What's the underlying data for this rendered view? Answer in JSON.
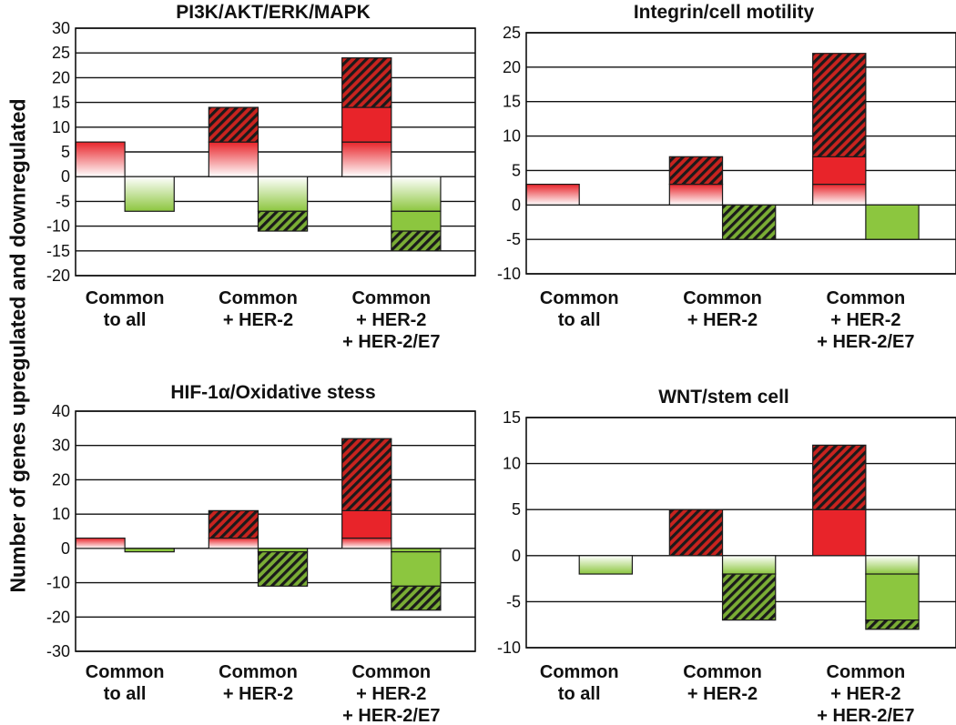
{
  "shared_ylabel": "Number of genes upregulated and downregulated",
  "colors": {
    "up_dark": "#e8242a",
    "up_light": "#ffffff",
    "down_dark": "#8cc63f",
    "down_light": "#ffffff",
    "hatch_up_bg": "#c8231f",
    "hatch_down_bg": "#7aad35",
    "hatch_line": "#1a1a1a"
  },
  "chart_data": [
    {
      "type": "bar",
      "title": "PI3K/AKT/ERK/MAPK",
      "categories": [
        [
          "Common",
          "to all"
        ],
        [
          "Common",
          "+ HER-2"
        ],
        [
          "Common",
          "+ HER-2",
          "+ HER-2/E7"
        ]
      ],
      "ylim": [
        -20,
        30
      ],
      "yticks": [
        -20,
        -15,
        -10,
        -5,
        0,
        5,
        10,
        15,
        20,
        25,
        30
      ],
      "grid": true,
      "up": [
        [
          {
            "from": 0,
            "to": 7,
            "style": "gradient"
          }
        ],
        [
          {
            "from": 0,
            "to": 7,
            "style": "gradient"
          },
          {
            "from": 7,
            "to": 14,
            "style": "hatch"
          }
        ],
        [
          {
            "from": 0,
            "to": 7,
            "style": "gradient"
          },
          {
            "from": 7,
            "to": 14,
            "style": "solid"
          },
          {
            "from": 14,
            "to": 24,
            "style": "hatch"
          }
        ]
      ],
      "down": [
        [
          {
            "from": 0,
            "to": -7,
            "style": "gradient"
          }
        ],
        [
          {
            "from": 0,
            "to": -7,
            "style": "gradient"
          },
          {
            "from": -7,
            "to": -11,
            "style": "hatch"
          }
        ],
        [
          {
            "from": 0,
            "to": -7,
            "style": "gradient"
          },
          {
            "from": -7,
            "to": -11,
            "style": "solid"
          },
          {
            "from": -11,
            "to": -15,
            "style": "hatch"
          }
        ]
      ]
    },
    {
      "type": "bar",
      "title": "Integrin/cell motility",
      "categories": [
        [
          "Common",
          "to all"
        ],
        [
          "Common",
          "+ HER-2"
        ],
        [
          "Common",
          "+ HER-2",
          "+ HER-2/E7"
        ]
      ],
      "ylim": [
        -10,
        25
      ],
      "yticks": [
        -10,
        -5,
        0,
        5,
        10,
        15,
        20,
        25
      ],
      "grid": true,
      "up": [
        [
          {
            "from": 0,
            "to": 3,
            "style": "gradient"
          }
        ],
        [
          {
            "from": 0,
            "to": 3,
            "style": "gradient"
          },
          {
            "from": 3,
            "to": 7,
            "style": "hatch"
          }
        ],
        [
          {
            "from": 0,
            "to": 3,
            "style": "gradient"
          },
          {
            "from": 3,
            "to": 7,
            "style": "solid"
          },
          {
            "from": 7,
            "to": 22,
            "style": "hatch"
          }
        ]
      ],
      "down": [
        [],
        [
          {
            "from": 0,
            "to": -5,
            "style": "hatch"
          }
        ],
        [
          {
            "from": 0,
            "to": -5,
            "style": "solid"
          }
        ]
      ]
    },
    {
      "type": "bar",
      "title": "HIF-1α/Oxidative stess",
      "categories": [
        [
          "Common",
          "to all"
        ],
        [
          "Common",
          "+ HER-2"
        ],
        [
          "Common",
          "+ HER-2",
          "+ HER-2/E7"
        ]
      ],
      "ylim": [
        -30,
        40
      ],
      "yticks": [
        -30,
        -20,
        -10,
        0,
        10,
        20,
        30,
        40
      ],
      "grid": true,
      "up": [
        [
          {
            "from": 0,
            "to": 3,
            "style": "gradient"
          }
        ],
        [
          {
            "from": 0,
            "to": 3,
            "style": "gradient"
          },
          {
            "from": 3,
            "to": 11,
            "style": "hatch"
          }
        ],
        [
          {
            "from": 0,
            "to": 3,
            "style": "gradient"
          },
          {
            "from": 3,
            "to": 11,
            "style": "solid"
          },
          {
            "from": 11,
            "to": 32,
            "style": "hatch"
          }
        ]
      ],
      "down": [
        [
          {
            "from": 0,
            "to": -1,
            "style": "solid"
          }
        ],
        [
          {
            "from": 0,
            "to": -1,
            "style": "solid"
          },
          {
            "from": -1,
            "to": -11,
            "style": "hatch"
          }
        ],
        [
          {
            "from": 0,
            "to": -1,
            "style": "solid"
          },
          {
            "from": -1,
            "to": -11,
            "style": "solid"
          },
          {
            "from": -11,
            "to": -18,
            "style": "hatch"
          }
        ]
      ]
    },
    {
      "type": "bar",
      "title": "WNT/stem cell",
      "categories": [
        [
          "Common",
          "to all"
        ],
        [
          "Common",
          "+ HER-2"
        ],
        [
          "Common",
          "+ HER-2",
          "+ HER-2/E7"
        ]
      ],
      "ylim": [
        -10,
        15
      ],
      "yticks": [
        -10,
        -5,
        0,
        5,
        10,
        15
      ],
      "grid": true,
      "up": [
        [],
        [
          {
            "from": 0,
            "to": 5,
            "style": "hatch"
          }
        ],
        [
          {
            "from": 0,
            "to": 5,
            "style": "solid"
          },
          {
            "from": 5,
            "to": 12,
            "style": "hatch"
          }
        ]
      ],
      "down": [
        [
          {
            "from": 0,
            "to": -2,
            "style": "gradient"
          }
        ],
        [
          {
            "from": 0,
            "to": -2,
            "style": "gradient"
          },
          {
            "from": -2,
            "to": -7,
            "style": "hatch"
          }
        ],
        [
          {
            "from": 0,
            "to": -2,
            "style": "gradient"
          },
          {
            "from": -2,
            "to": -7,
            "style": "solid"
          },
          {
            "from": -7,
            "to": -8,
            "style": "hatch"
          }
        ]
      ]
    }
  ]
}
